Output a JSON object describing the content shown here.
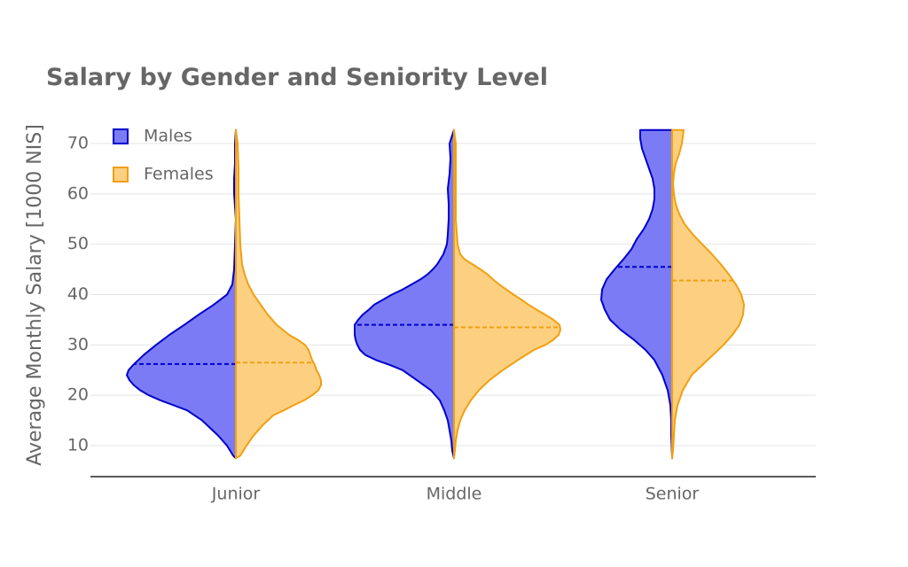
{
  "chart_data": {
    "type": "violin",
    "title": "Salary by Gender and Seniority Level",
    "xlabel": "",
    "ylabel": "Average Monthly Salary [1000 NIS]",
    "categories": [
      "Junior",
      "Middle",
      "Senior"
    ],
    "yticks": [
      10,
      20,
      30,
      40,
      50,
      60,
      70
    ],
    "ylim": [
      4.5,
      75
    ],
    "grid": true,
    "legend_position": "top-left",
    "series": [
      {
        "name": "Males",
        "side": "negative",
        "color": "#0000cc",
        "fill": "#7b7bf5",
        "medians": [
          26.2,
          34.0,
          45.5
        ],
        "profiles": [
          [
            [
              7.5,
              0
            ],
            [
              8,
              3
            ],
            [
              10,
              10
            ],
            [
              12,
              20
            ],
            [
              15,
              38
            ],
            [
              17,
              55
            ],
            [
              18,
              70
            ],
            [
              19,
              85
            ],
            [
              20,
              98
            ],
            [
              21,
              108
            ],
            [
              22,
              115
            ],
            [
              23,
              120
            ],
            [
              24,
              123
            ],
            [
              25,
              121
            ],
            [
              26,
              116
            ],
            [
              28,
              104
            ],
            [
              30,
              90
            ],
            [
              32,
              75
            ],
            [
              34,
              58
            ],
            [
              36,
              42
            ],
            [
              38,
              25
            ],
            [
              40,
              10
            ],
            [
              42,
              4
            ],
            [
              45,
              2
            ],
            [
              50,
              1
            ],
            [
              55,
              0
            ],
            [
              60,
              2
            ],
            [
              63,
              2
            ],
            [
              66,
              1
            ],
            [
              70,
              1
            ],
            [
              72.7,
              0
            ]
          ],
          [
            [
              7.5,
              0
            ],
            [
              9,
              2
            ],
            [
              11,
              3
            ],
            [
              13,
              5
            ],
            [
              15,
              7
            ],
            [
              17,
              11
            ],
            [
              19,
              16
            ],
            [
              21,
              26
            ],
            [
              23,
              42
            ],
            [
              25,
              58
            ],
            [
              26,
              72
            ],
            [
              27,
              88
            ],
            [
              28,
              100
            ],
            [
              29,
              106
            ],
            [
              30,
              109
            ],
            [
              31,
              111
            ],
            [
              32,
              112
            ],
            [
              33,
              112
            ],
            [
              34,
              112
            ],
            [
              35,
              108
            ],
            [
              36,
              103
            ],
            [
              37,
              96
            ],
            [
              38,
              90
            ],
            [
              39,
              80
            ],
            [
              40,
              70
            ],
            [
              41,
              58
            ],
            [
              42,
              48
            ],
            [
              43,
              38
            ],
            [
              44,
              30
            ],
            [
              45,
              24
            ],
            [
              46,
              19
            ],
            [
              48,
              12
            ],
            [
              50,
              8
            ],
            [
              52,
              7
            ],
            [
              55,
              6
            ],
            [
              58,
              6
            ],
            [
              61,
              7
            ],
            [
              64,
              5
            ],
            [
              67,
              4
            ],
            [
              70,
              5
            ],
            [
              72.7,
              0
            ]
          ],
          [
            [
              7.5,
              0
            ],
            [
              12,
              1
            ],
            [
              15,
              1
            ],
            [
              18,
              2
            ],
            [
              21,
              5
            ],
            [
              24,
              11
            ],
            [
              27,
              20
            ],
            [
              29,
              30
            ],
            [
              31,
              43
            ],
            [
              33,
              58
            ],
            [
              35,
              70
            ],
            [
              37,
              76
            ],
            [
              39,
              80
            ],
            [
              41,
              79
            ],
            [
              43,
              74
            ],
            [
              45,
              65
            ],
            [
              47,
              55
            ],
            [
              49,
              46
            ],
            [
              51,
              40
            ],
            [
              53,
              32
            ],
            [
              55,
              26
            ],
            [
              57,
              22
            ],
            [
              59,
              20
            ],
            [
              61,
              20
            ],
            [
              63,
              22
            ],
            [
              65,
              26
            ],
            [
              67,
              30
            ],
            [
              69,
              34
            ],
            [
              71,
              36
            ],
            [
              72.7,
              36
            ]
          ]
        ]
      },
      {
        "name": "Females",
        "side": "positive",
        "color": "#f0a010",
        "fill": "#fdd081",
        "medians": [
          26.5,
          33.5,
          42.8
        ],
        "profiles": [
          [
            [
              7.5,
              0
            ],
            [
              8,
              5
            ],
            [
              10,
              12
            ],
            [
              12,
              20
            ],
            [
              14,
              30
            ],
            [
              16,
              42
            ],
            [
              17,
              54
            ],
            [
              18,
              65
            ],
            [
              19,
              77
            ],
            [
              20,
              86
            ],
            [
              21,
              93
            ],
            [
              22,
              96
            ],
            [
              23,
              96
            ],
            [
              24,
              94
            ],
            [
              25,
              91
            ],
            [
              26,
              89
            ],
            [
              27,
              86
            ],
            [
              28,
              84
            ],
            [
              29,
              82
            ],
            [
              30,
              78
            ],
            [
              31,
              70
            ],
            [
              32,
              60
            ],
            [
              34,
              46
            ],
            [
              36,
              36
            ],
            [
              38,
              28
            ],
            [
              40,
              20
            ],
            [
              42,
              14
            ],
            [
              44,
              10
            ],
            [
              46,
              7
            ],
            [
              50,
              5
            ],
            [
              55,
              4
            ],
            [
              60,
              3
            ],
            [
              65,
              3
            ],
            [
              70,
              2
            ],
            [
              72.7,
              0
            ]
          ],
          [
            [
              7.5,
              0
            ],
            [
              9,
              1
            ],
            [
              11,
              2
            ],
            [
              13,
              4
            ],
            [
              15,
              7
            ],
            [
              17,
              12
            ],
            [
              19,
              19
            ],
            [
              21,
              28
            ],
            [
              23,
              40
            ],
            [
              25,
              55
            ],
            [
              27,
              72
            ],
            [
              29,
              90
            ],
            [
              30,
              103
            ],
            [
              31,
              112
            ],
            [
              32,
              118
            ],
            [
              33,
              120
            ],
            [
              34,
              119
            ],
            [
              35,
              112
            ],
            [
              36,
              103
            ],
            [
              37,
              93
            ],
            [
              38,
              84
            ],
            [
              39,
              76
            ],
            [
              40,
              67
            ],
            [
              41,
              59
            ],
            [
              42,
              51
            ],
            [
              43,
              44
            ],
            [
              44,
              38
            ],
            [
              45,
              30
            ],
            [
              46,
              21
            ],
            [
              47,
              12
            ],
            [
              48,
              7
            ],
            [
              50,
              4
            ],
            [
              55,
              2
            ],
            [
              60,
              2
            ],
            [
              65,
              2
            ],
            [
              70,
              2
            ],
            [
              72.7,
              0
            ]
          ],
          [
            [
              7.5,
              0
            ],
            [
              9,
              1
            ],
            [
              12,
              2
            ],
            [
              15,
              3
            ],
            [
              18,
              6
            ],
            [
              21,
              12
            ],
            [
              24,
              22
            ],
            [
              27,
              40
            ],
            [
              30,
              58
            ],
            [
              32,
              68
            ],
            [
              34,
              76
            ],
            [
              36,
              80
            ],
            [
              38,
              81
            ],
            [
              40,
              78
            ],
            [
              42,
              72
            ],
            [
              44,
              64
            ],
            [
              46,
              55
            ],
            [
              48,
              45
            ],
            [
              50,
              34
            ],
            [
              52,
              23
            ],
            [
              54,
              14
            ],
            [
              56,
              8
            ],
            [
              58,
              4
            ],
            [
              60,
              2
            ],
            [
              62,
              1
            ],
            [
              64,
              2
            ],
            [
              66,
              4
            ],
            [
              68,
              8
            ],
            [
              70,
              11
            ],
            [
              72.7,
              13
            ]
          ]
        ]
      }
    ]
  }
}
